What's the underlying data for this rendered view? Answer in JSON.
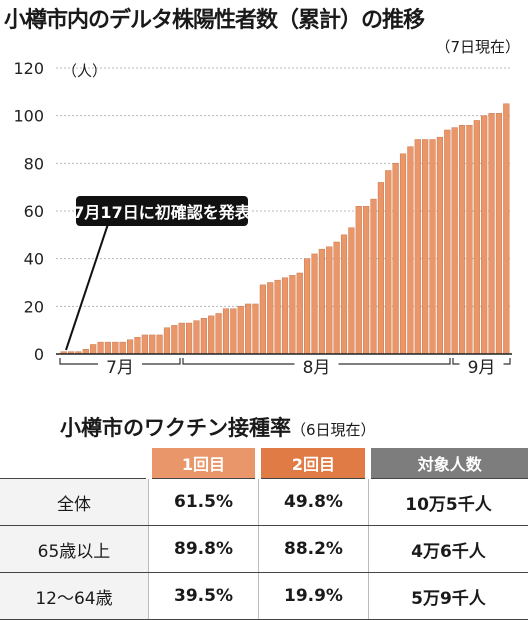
{
  "title": "小樽市内のデルタ株陽性者数（累計）の推移",
  "as_of": "（7日現在）",
  "chart_data": {
    "type": "bar",
    "y_unit_label": "（人）",
    "ylim": [
      0,
      120
    ],
    "yticks": [
      0,
      20,
      40,
      60,
      80,
      100,
      120
    ],
    "grid": true,
    "month_labels": [
      "7月",
      "8月",
      "9月"
    ],
    "annotation": "7月17日に初確認を発表",
    "values": [
      1,
      1,
      1,
      2,
      4,
      5,
      5,
      5,
      5,
      6,
      7,
      8,
      8,
      8,
      11,
      12,
      13,
      13,
      14,
      15,
      16,
      17,
      19,
      19,
      20,
      21,
      21,
      29,
      30,
      31,
      32,
      33,
      34,
      40,
      42,
      44,
      45,
      47,
      50,
      53,
      62,
      62,
      65,
      72,
      77,
      80,
      84,
      87,
      90,
      90,
      90,
      91,
      94,
      95,
      96,
      96,
      98,
      100,
      101,
      101,
      105
    ]
  },
  "vaccine": {
    "title": "小樽市のワクチン接種率",
    "as_of": "（6日現在）",
    "headers": [
      "1回目",
      "2回目",
      "対象人数"
    ],
    "rows": [
      {
        "label": "全体",
        "dose1": "61.5%",
        "dose2": "49.8%",
        "population": "10万5千人"
      },
      {
        "label": "65歳以上",
        "dose1": "89.8%",
        "dose2": "88.2%",
        "population": "4万6千人"
      },
      {
        "label": "12～64歳",
        "dose1": "39.5%",
        "dose2": "19.9%",
        "population": "5万9千人"
      }
    ]
  },
  "colors": {
    "bar": "#e9976a",
    "bar_edge": "#c4683a",
    "grid": "#b8b8b8",
    "axis": "#222222",
    "dose1_header": "#e9976a",
    "dose2_header": "#e07b45",
    "population_header": "#7d7d7d"
  }
}
